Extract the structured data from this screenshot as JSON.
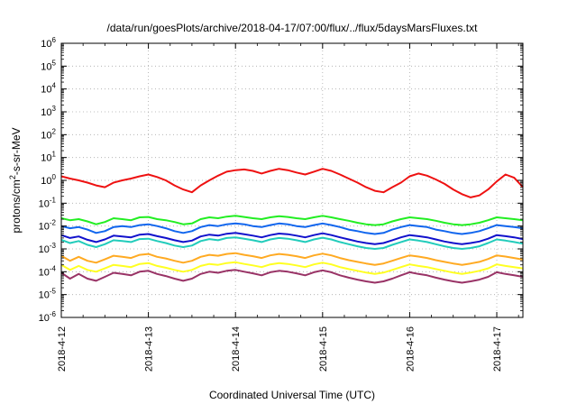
{
  "chart_data": {
    "type": "line",
    "title": "/data/run/goesPlots/archive/2018-04-17/07:00/flux/../flux/5daysMarsFluxes.txt",
    "xlabel": "Coordinated Universal Time (UTC)",
    "ylabel_main": "protons/cm",
    "ylabel_sup": "2",
    "ylabel_rest": "-s-sr-MeV",
    "y_scale": "log",
    "ylim_exp": [
      -6,
      6
    ],
    "xlim_days": [
      0,
      5.3
    ],
    "x_ticks": [
      {
        "day": 0,
        "label": "2018-4-12"
      },
      {
        "day": 1,
        "label": "2018-4-13"
      },
      {
        "day": 2,
        "label": "2018-4-14"
      },
      {
        "day": 3,
        "label": "2018-4-15"
      },
      {
        "day": 4,
        "label": "2018-4-16"
      },
      {
        "day": 5,
        "label": "2018-4-17"
      }
    ],
    "y_ticks": [
      {
        "exp": -6,
        "base": "10",
        "sup": "-6"
      },
      {
        "exp": -5,
        "base": "10",
        "sup": "-5"
      },
      {
        "exp": -4,
        "base": "10",
        "sup": "-4"
      },
      {
        "exp": -3,
        "base": "10",
        "sup": "-3"
      },
      {
        "exp": -2,
        "base": "10",
        "sup": "-2"
      },
      {
        "exp": -1,
        "base": "10",
        "sup": "-1"
      },
      {
        "exp": 0,
        "base": "10",
        "sup": "0"
      },
      {
        "exp": 1,
        "base": "10",
        "sup": "1"
      },
      {
        "exp": 2,
        "base": "10",
        "sup": "2"
      },
      {
        "exp": 3,
        "base": "10",
        "sup": "3"
      },
      {
        "exp": 4,
        "base": "10",
        "sup": "4"
      },
      {
        "exp": 5,
        "base": "10",
        "sup": "5"
      },
      {
        "exp": 6,
        "base": "10",
        "sup": "6"
      }
    ],
    "grid": true,
    "series": [
      {
        "color": "#ee1111",
        "x": [
          0,
          0.1,
          0.2,
          0.3,
          0.4,
          0.5,
          0.6,
          0.7,
          0.8,
          0.9,
          1.0,
          1.1,
          1.2,
          1.3,
          1.4,
          1.5,
          1.6,
          1.7,
          1.8,
          1.9,
          2.0,
          2.1,
          2.2,
          2.3,
          2.4,
          2.5,
          2.6,
          2.7,
          2.8,
          2.9,
          3.0,
          3.1,
          3.2,
          3.3,
          3.4,
          3.5,
          3.6,
          3.7,
          3.8,
          3.9,
          4.0,
          4.1,
          4.2,
          4.3,
          4.4,
          4.5,
          4.6,
          4.7,
          4.8,
          4.9,
          5.0,
          5.1,
          5.2,
          5.3
        ],
        "y": [
          1.5,
          1.2,
          1.0,
          0.8,
          0.6,
          0.5,
          0.8,
          1.0,
          1.2,
          1.5,
          1.8,
          1.4,
          1.0,
          0.6,
          0.4,
          0.3,
          0.6,
          1.0,
          1.6,
          2.4,
          2.8,
          3.0,
          2.6,
          2.0,
          2.6,
          3.2,
          2.8,
          2.2,
          1.8,
          2.4,
          3.2,
          2.6,
          1.8,
          1.2,
          0.8,
          0.5,
          0.35,
          0.3,
          0.5,
          0.8,
          1.5,
          2.0,
          1.6,
          1.1,
          0.7,
          0.4,
          0.25,
          0.18,
          0.22,
          0.4,
          0.9,
          1.8,
          1.3,
          0.5
        ]
      },
      {
        "color": "#22ee22",
        "x": [
          0,
          0.1,
          0.2,
          0.3,
          0.4,
          0.5,
          0.6,
          0.7,
          0.8,
          0.9,
          1.0,
          1.1,
          1.2,
          1.3,
          1.4,
          1.5,
          1.6,
          1.7,
          1.8,
          1.9,
          2.0,
          2.1,
          2.2,
          2.3,
          2.4,
          2.5,
          2.6,
          2.7,
          2.8,
          2.9,
          3.0,
          3.1,
          3.2,
          3.3,
          3.4,
          3.5,
          3.6,
          3.7,
          3.8,
          3.9,
          4.0,
          4.1,
          4.2,
          4.3,
          4.4,
          4.5,
          4.6,
          4.7,
          4.8,
          4.9,
          5.0,
          5.1,
          5.2,
          5.3
        ],
        "y": [
          0.022,
          0.018,
          0.02,
          0.016,
          0.012,
          0.015,
          0.022,
          0.02,
          0.018,
          0.024,
          0.025,
          0.02,
          0.018,
          0.015,
          0.012,
          0.013,
          0.02,
          0.024,
          0.022,
          0.026,
          0.028,
          0.025,
          0.022,
          0.02,
          0.024,
          0.027,
          0.025,
          0.022,
          0.02,
          0.024,
          0.028,
          0.024,
          0.02,
          0.017,
          0.014,
          0.012,
          0.011,
          0.012,
          0.016,
          0.02,
          0.024,
          0.022,
          0.02,
          0.017,
          0.014,
          0.012,
          0.011,
          0.012,
          0.014,
          0.018,
          0.024,
          0.022,
          0.02,
          0.018
        ]
      },
      {
        "color": "#1166ee",
        "x": [
          0,
          0.1,
          0.2,
          0.3,
          0.4,
          0.5,
          0.6,
          0.7,
          0.8,
          0.9,
          1.0,
          1.1,
          1.2,
          1.3,
          1.4,
          1.5,
          1.6,
          1.7,
          1.8,
          1.9,
          2.0,
          2.1,
          2.2,
          2.3,
          2.4,
          2.5,
          2.6,
          2.7,
          2.8,
          2.9,
          3.0,
          3.1,
          3.2,
          3.3,
          3.4,
          3.5,
          3.6,
          3.7,
          3.8,
          3.9,
          4.0,
          4.1,
          4.2,
          4.3,
          4.4,
          4.5,
          4.6,
          4.7,
          4.8,
          4.9,
          5.0,
          5.1,
          5.2,
          5.3
        ],
        "y": [
          0.01,
          0.008,
          0.009,
          0.007,
          0.005,
          0.006,
          0.009,
          0.01,
          0.009,
          0.011,
          0.012,
          0.01,
          0.008,
          0.006,
          0.005,
          0.006,
          0.009,
          0.011,
          0.01,
          0.012,
          0.013,
          0.012,
          0.01,
          0.009,
          0.011,
          0.013,
          0.012,
          0.01,
          0.009,
          0.011,
          0.013,
          0.011,
          0.009,
          0.007,
          0.006,
          0.005,
          0.0045,
          0.005,
          0.007,
          0.009,
          0.011,
          0.01,
          0.009,
          0.007,
          0.006,
          0.005,
          0.0045,
          0.005,
          0.006,
          0.008,
          0.011,
          0.01,
          0.009,
          0.008
        ]
      },
      {
        "color": "#22ccbb",
        "x": [
          0,
          0.1,
          0.2,
          0.3,
          0.4,
          0.5,
          0.6,
          0.7,
          0.8,
          0.9,
          1.0,
          1.1,
          1.2,
          1.3,
          1.4,
          1.5,
          1.6,
          1.7,
          1.8,
          1.9,
          2.0,
          2.1,
          2.2,
          2.3,
          2.4,
          2.5,
          2.6,
          2.7,
          2.8,
          2.9,
          3.0,
          3.1,
          3.2,
          3.3,
          3.4,
          3.5,
          3.6,
          3.7,
          3.8,
          3.9,
          4.0,
          4.1,
          4.2,
          4.3,
          4.4,
          4.5,
          4.6,
          4.7,
          4.8,
          4.9,
          5.0,
          5.1,
          5.2,
          5.3
        ],
        "y": [
          0.0025,
          0.0018,
          0.0022,
          0.0015,
          0.0012,
          0.0016,
          0.0024,
          0.0022,
          0.002,
          0.0027,
          0.0028,
          0.0022,
          0.0018,
          0.0014,
          0.0012,
          0.0014,
          0.0022,
          0.0027,
          0.0024,
          0.003,
          0.0032,
          0.0028,
          0.0024,
          0.002,
          0.0026,
          0.003,
          0.0028,
          0.0024,
          0.002,
          0.0026,
          0.0031,
          0.0026,
          0.002,
          0.0016,
          0.0013,
          0.0011,
          0.001,
          0.0011,
          0.0015,
          0.002,
          0.0026,
          0.0023,
          0.002,
          0.0016,
          0.0013,
          0.0011,
          0.001,
          0.0011,
          0.0013,
          0.0018,
          0.0026,
          0.0023,
          0.002,
          0.0017
        ]
      },
      {
        "color": "#1111cc",
        "x": [
          0,
          0.1,
          0.2,
          0.3,
          0.4,
          0.5,
          0.6,
          0.7,
          0.8,
          0.9,
          1.0,
          1.1,
          1.2,
          1.3,
          1.4,
          1.5,
          1.6,
          1.7,
          1.8,
          1.9,
          2.0,
          2.1,
          2.2,
          2.3,
          2.4,
          2.5,
          2.6,
          2.7,
          2.8,
          2.9,
          3.0,
          3.1,
          3.2,
          3.3,
          3.4,
          3.5,
          3.6,
          3.7,
          3.8,
          3.9,
          4.0,
          4.1,
          4.2,
          4.3,
          4.4,
          4.5,
          4.6,
          4.7,
          4.8,
          4.9,
          5.0,
          5.1,
          5.2,
          5.3
        ],
        "y": [
          0.004,
          0.003,
          0.0035,
          0.0025,
          0.002,
          0.0026,
          0.0038,
          0.0035,
          0.0032,
          0.0042,
          0.0045,
          0.0036,
          0.003,
          0.0024,
          0.002,
          0.0023,
          0.0035,
          0.0042,
          0.0038,
          0.0046,
          0.005,
          0.0044,
          0.0038,
          0.0032,
          0.004,
          0.0047,
          0.0044,
          0.0038,
          0.0032,
          0.004,
          0.0048,
          0.004,
          0.0032,
          0.0026,
          0.0021,
          0.0018,
          0.0016,
          0.0018,
          0.0024,
          0.0032,
          0.004,
          0.0036,
          0.0032,
          0.0026,
          0.0021,
          0.0018,
          0.0016,
          0.0018,
          0.0021,
          0.0028,
          0.004,
          0.0036,
          0.0032,
          0.0027
        ]
      },
      {
        "color": "#ffaa22",
        "x": [
          0,
          0.1,
          0.2,
          0.3,
          0.4,
          0.5,
          0.6,
          0.7,
          0.8,
          0.9,
          1.0,
          1.1,
          1.2,
          1.3,
          1.4,
          1.5,
          1.6,
          1.7,
          1.8,
          1.9,
          2.0,
          2.1,
          2.2,
          2.3,
          2.4,
          2.5,
          2.6,
          2.7,
          2.8,
          2.9,
          3.0,
          3.1,
          3.2,
          3.3,
          3.4,
          3.5,
          3.6,
          3.7,
          3.8,
          3.9,
          4.0,
          4.1,
          4.2,
          4.3,
          4.4,
          4.5,
          4.6,
          4.7,
          4.8,
          4.9,
          5.0,
          5.1,
          5.2,
          5.3
        ],
        "y": [
          0.0005,
          0.0003,
          0.00045,
          0.0003,
          0.00025,
          0.00035,
          0.0005,
          0.00045,
          0.0004,
          0.00055,
          0.0006,
          0.00045,
          0.00038,
          0.0003,
          0.00025,
          0.0003,
          0.00045,
          0.00055,
          0.0005,
          0.0006,
          0.00065,
          0.00055,
          0.00048,
          0.0004,
          0.00052,
          0.0006,
          0.00055,
          0.00048,
          0.0004,
          0.00052,
          0.00062,
          0.00052,
          0.0004,
          0.00032,
          0.00027,
          0.00023,
          0.0002,
          0.00023,
          0.0003,
          0.0004,
          0.00052,
          0.00046,
          0.0004,
          0.00032,
          0.00027,
          0.00023,
          0.0002,
          0.00023,
          0.00027,
          0.00036,
          0.00052,
          0.00046,
          0.0004,
          0.00034
        ]
      },
      {
        "color": "#ffff22",
        "x": [
          0,
          0.1,
          0.2,
          0.3,
          0.4,
          0.5,
          0.6,
          0.7,
          0.8,
          0.9,
          1.0,
          1.1,
          1.2,
          1.3,
          1.4,
          1.5,
          1.6,
          1.7,
          1.8,
          1.9,
          2.0,
          2.1,
          2.2,
          2.3,
          2.4,
          2.5,
          2.6,
          2.7,
          2.8,
          2.9,
          3.0,
          3.1,
          3.2,
          3.3,
          3.4,
          3.5,
          3.6,
          3.7,
          3.8,
          3.9,
          4.0,
          4.1,
          4.2,
          4.3,
          4.4,
          4.5,
          4.6,
          4.7,
          4.8,
          4.9,
          5.0,
          5.1,
          5.2,
          5.3
        ],
        "y": [
          0.0002,
          0.00012,
          0.00018,
          0.00012,
          0.0001,
          0.00014,
          0.0002,
          0.00018,
          0.00016,
          0.00022,
          0.00024,
          0.00018,
          0.00015,
          0.00012,
          0.0001,
          0.00012,
          0.00018,
          0.00022,
          0.0002,
          0.00024,
          0.00026,
          0.00022,
          0.00019,
          0.00016,
          0.00021,
          0.00024,
          0.00022,
          0.00019,
          0.00016,
          0.00021,
          0.00025,
          0.00021,
          0.00016,
          0.00013,
          0.00011,
          9.2e-05,
          8e-05,
          9.2e-05,
          0.00012,
          0.00016,
          0.00021,
          0.00018,
          0.00016,
          0.00013,
          0.00011,
          9.2e-05,
          8e-05,
          9.2e-05,
          0.00011,
          0.00014,
          0.00021,
          0.00018,
          0.00016,
          0.00014
        ]
      },
      {
        "color": "#993366",
        "x": [
          0,
          0.1,
          0.2,
          0.3,
          0.4,
          0.5,
          0.6,
          0.7,
          0.8,
          0.9,
          1.0,
          1.1,
          1.2,
          1.3,
          1.4,
          1.5,
          1.6,
          1.7,
          1.8,
          1.9,
          2.0,
          2.1,
          2.2,
          2.3,
          2.4,
          2.5,
          2.6,
          2.7,
          2.8,
          2.9,
          3.0,
          3.1,
          3.2,
          3.3,
          3.4,
          3.5,
          3.6,
          3.7,
          3.8,
          3.9,
          4.0,
          4.1,
          4.2,
          4.3,
          4.4,
          4.5,
          4.6,
          4.7,
          4.8,
          4.9,
          5.0,
          5.1,
          5.2,
          5.3
        ],
        "y": [
          9e-05,
          5e-05,
          8e-05,
          5e-05,
          4e-05,
          6e-05,
          9e-05,
          8e-05,
          7e-05,
          0.0001,
          0.00011,
          8e-05,
          6.5e-05,
          5e-05,
          4e-05,
          5e-05,
          8e-05,
          0.0001,
          9e-05,
          0.00011,
          0.00012,
          0.0001,
          8.5e-05,
          7e-05,
          9.5e-05,
          0.00011,
          0.0001,
          8.5e-05,
          7e-05,
          9.5e-05,
          0.000115,
          9.5e-05,
          7e-05,
          5.5e-05,
          4.5e-05,
          3.8e-05,
          3.3e-05,
          3.8e-05,
          5e-05,
          7e-05,
          9.5e-05,
          8e-05,
          7e-05,
          5.5e-05,
          4.5e-05,
          3.8e-05,
          3.3e-05,
          3.8e-05,
          4.5e-05,
          6e-05,
          9.5e-05,
          8e-05,
          7e-05,
          6e-05
        ]
      }
    ]
  }
}
